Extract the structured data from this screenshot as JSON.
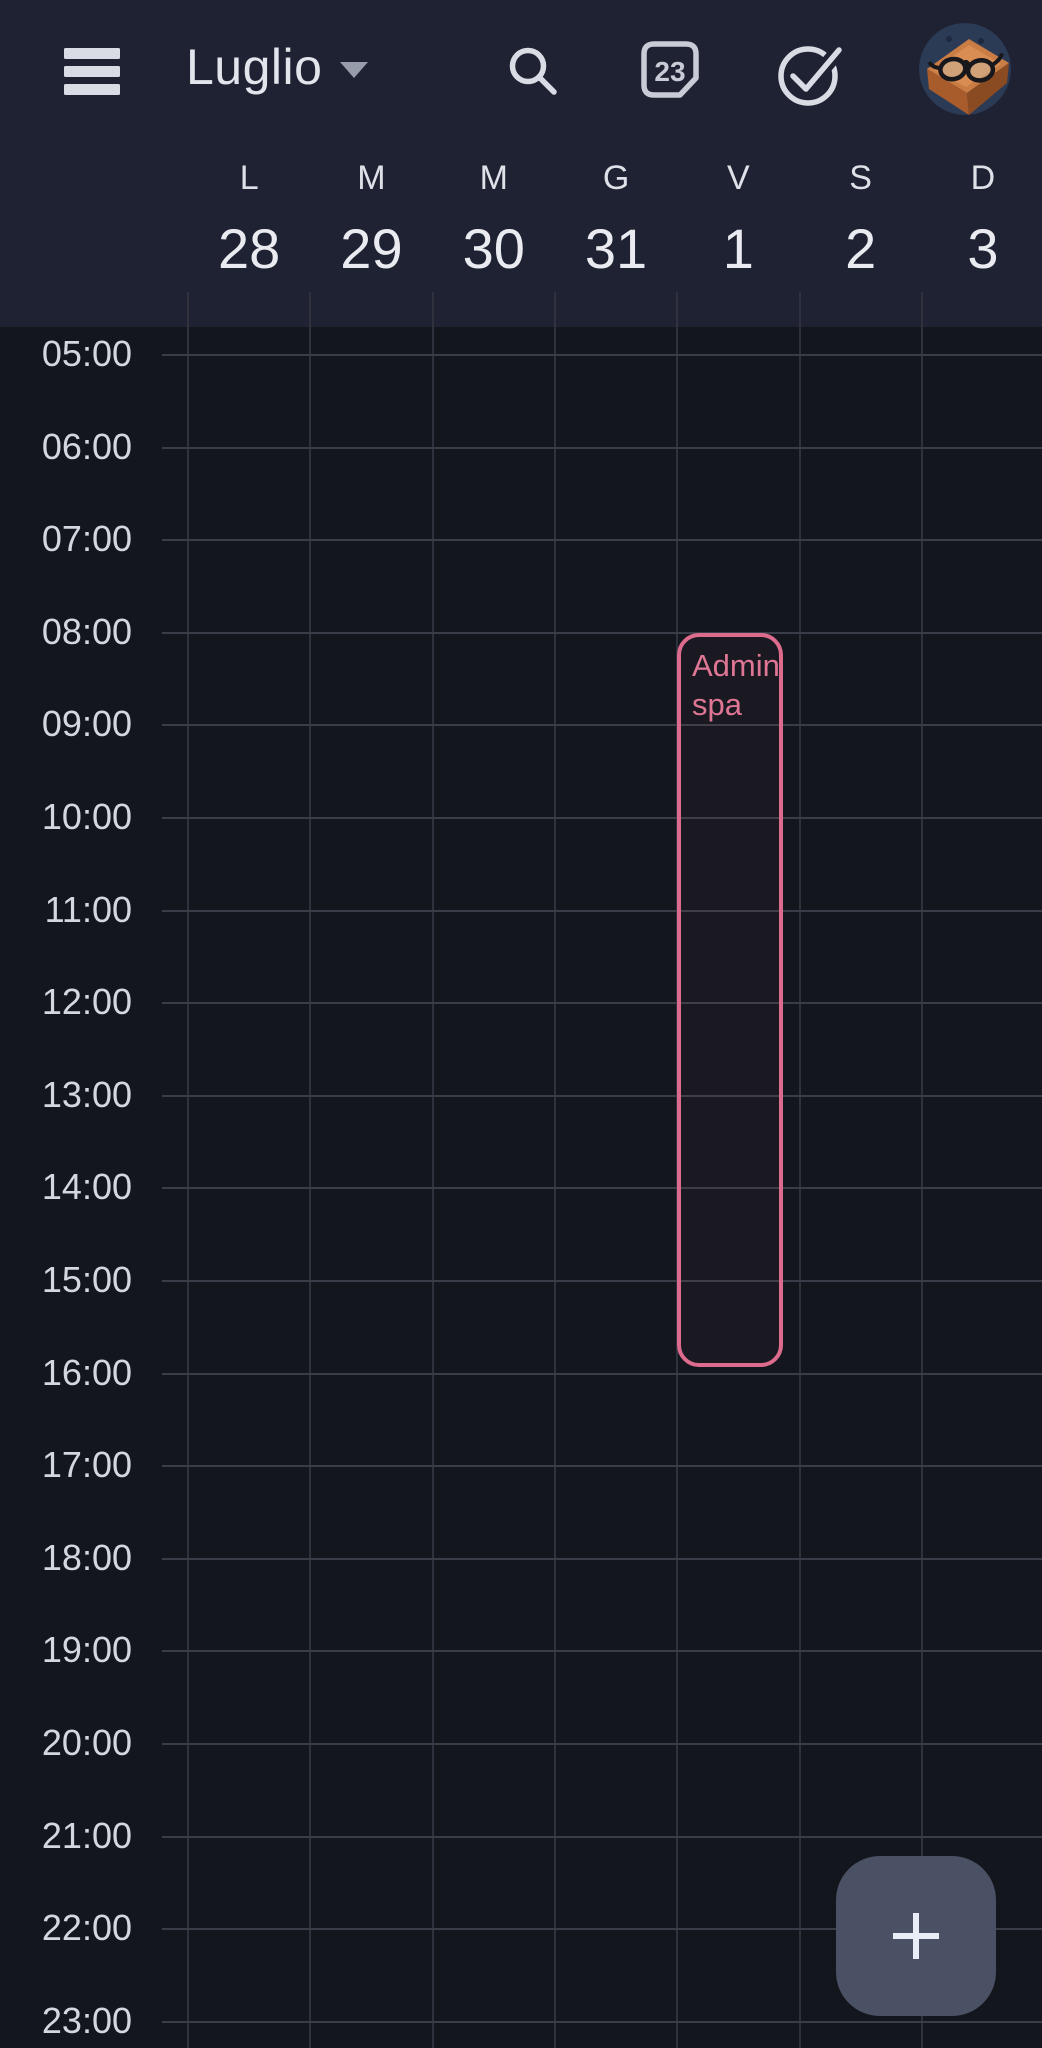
{
  "app_bar": {
    "menu_icon": "hamburger-menu-icon",
    "month_selector": {
      "label": "Luglio",
      "dropdown_icon": "chevron-down-icon"
    },
    "search_icon": "search-icon",
    "today_icon": {
      "name": "calendar-today-icon",
      "number": "23"
    },
    "tasks_icon": "check-circle-icon",
    "avatar_icon": "profile-avatar-glasses-on-box-illustration"
  },
  "week_header": {
    "days": [
      {
        "letter": "L",
        "date": "28"
      },
      {
        "letter": "M",
        "date": "29"
      },
      {
        "letter": "M",
        "date": "30"
      },
      {
        "letter": "G",
        "date": "31"
      },
      {
        "letter": "V",
        "date": "1"
      },
      {
        "letter": "S",
        "date": "2"
      },
      {
        "letter": "D",
        "date": "3"
      }
    ]
  },
  "time_column": {
    "labels": [
      "05:00",
      "06:00",
      "07:00",
      "08:00",
      "09:00",
      "10:00",
      "11:00",
      "12:00",
      "13:00",
      "14:00",
      "15:00",
      "16:00",
      "17:00",
      "18:00",
      "19:00",
      "20:00",
      "21:00",
      "22:00",
      "23:00"
    ]
  },
  "events": [
    {
      "title": "Admin spa",
      "day_letter": "V",
      "date": "1",
      "day_index": 4,
      "start_time": "08:00",
      "end_time": "16:00",
      "accent_color": "#dd6b8d"
    }
  ],
  "fab": {
    "icon": "plus-icon"
  },
  "colors": {
    "header_bg": "#1f2232",
    "grid_bg": "#14161e",
    "event_accent": "#dd6b8d",
    "fab_bg": "#4a5164",
    "icon_color": "#d9dce4"
  }
}
